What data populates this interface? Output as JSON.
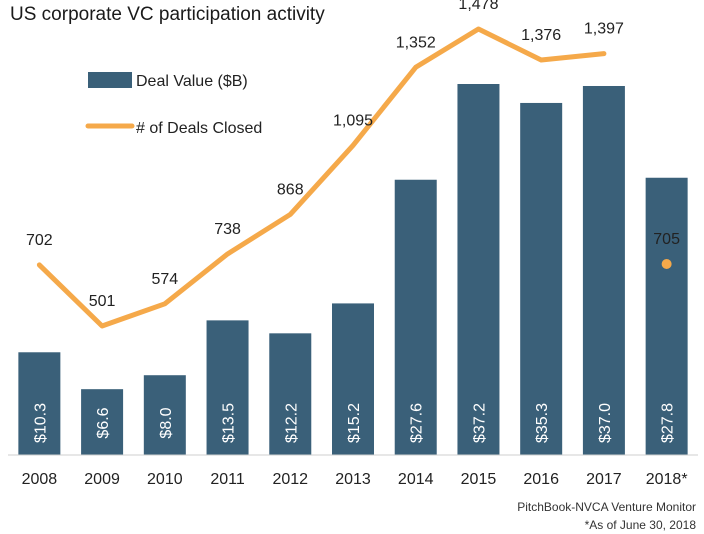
{
  "chart_data": {
    "type": "bar+line",
    "title": "US corporate VC participation activity",
    "categories": [
      "2008",
      "2009",
      "2010",
      "2011",
      "2012",
      "2013",
      "2014",
      "2015",
      "2016",
      "2017",
      "2018*"
    ],
    "series": [
      {
        "name": "Deal Value ($B)",
        "kind": "bar",
        "color": "#3a6079",
        "values": [
          10.3,
          6.6,
          8.0,
          13.5,
          12.2,
          15.2,
          27.6,
          37.2,
          35.3,
          37.0,
          27.8
        ],
        "labels": [
          "$10.3",
          "$6.6",
          "$8.0",
          "$13.5",
          "$12.2",
          "$15.2",
          "$27.6",
          "$37.2",
          "$35.3",
          "$37.0",
          "$27.8"
        ]
      },
      {
        "name": "# of Deals Closed",
        "kind": "line",
        "color": "#f5a94a",
        "values": [
          702,
          501,
          574,
          738,
          868,
          1095,
          1352,
          1478,
          1376,
          1397,
          705
        ],
        "labels": [
          "702",
          "501",
          "574",
          "738",
          "868",
          "1,095",
          "1,352",
          "1,478",
          "1,376",
          "1,397",
          "705"
        ],
        "last_point_separate": true
      }
    ],
    "legend": "top-left",
    "grid": false
  },
  "source": "PitchBook-NVCA Venture Monitor",
  "footnote": "*As of June 30, 2018"
}
